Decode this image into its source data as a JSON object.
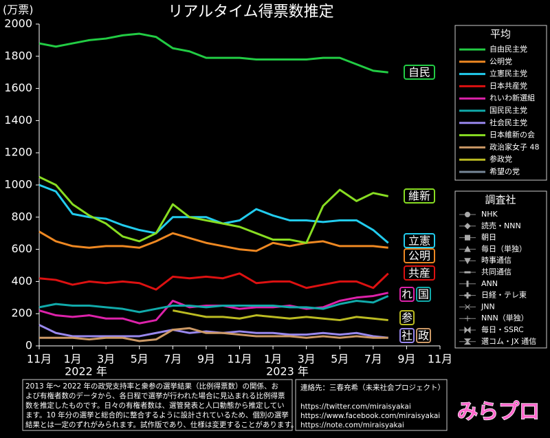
{
  "chart_data": {
    "type": "line",
    "title": "リアルタイム得票数推定",
    "y_unit_label": "(万票)",
    "x": [
      0,
      1,
      2,
      3,
      4,
      5,
      6,
      7,
      8,
      9,
      10,
      11,
      12,
      13,
      14,
      15,
      16,
      17,
      18,
      19,
      20,
      20.9
    ],
    "xlim": [
      0,
      24
    ],
    "xticks": [
      {
        "value": 0,
        "label": "11月"
      },
      {
        "value": 2,
        "label": "1月"
      },
      {
        "value": 4,
        "label": "3月"
      },
      {
        "value": 6,
        "label": "5月"
      },
      {
        "value": 8,
        "label": "7月"
      },
      {
        "value": 10,
        "label": "9月"
      },
      {
        "value": 12,
        "label": "11月"
      },
      {
        "value": 14,
        "label": "1月"
      },
      {
        "value": 16,
        "label": "3月"
      },
      {
        "value": 18,
        "label": "5月"
      },
      {
        "value": 20,
        "label": "7月"
      },
      {
        "value": 22,
        "label": "9月"
      },
      {
        "value": 24,
        "label": "11月"
      }
    ],
    "year_labels": [
      "2022 年",
      "2023 年"
    ],
    "ylim": [
      0,
      2000
    ],
    "yticks": [
      0,
      200,
      400,
      600,
      800,
      1000,
      1200,
      1400,
      1600,
      1800,
      2000
    ],
    "legend_title": "平均",
    "series": [
      {
        "name": "自由民主党",
        "color": "#22cc44",
        "values": [
          1880,
          1860,
          1880,
          1900,
          1910,
          1930,
          1940,
          1920,
          1850,
          1830,
          1790,
          1790,
          1790,
          1780,
          1780,
          1780,
          1780,
          1790,
          1790,
          1750,
          1710,
          1700
        ]
      },
      {
        "name": "公明党",
        "color": "#ee8822",
        "values": [
          710,
          650,
          620,
          610,
          620,
          620,
          610,
          650,
          700,
          670,
          640,
          620,
          600,
          590,
          640,
          620,
          640,
          650,
          620,
          620,
          620,
          610
        ]
      },
      {
        "name": "立憲民主党",
        "color": "#22ccee",
        "values": [
          1000,
          960,
          820,
          800,
          790,
          750,
          720,
          700,
          800,
          800,
          800,
          760,
          780,
          850,
          810,
          780,
          780,
          770,
          780,
          780,
          720,
          640
        ]
      },
      {
        "name": "日本共産党",
        "color": "#dd1111",
        "values": [
          420,
          410,
          380,
          400,
          390,
          400,
          390,
          350,
          430,
          420,
          430,
          420,
          450,
          390,
          400,
          400,
          360,
          380,
          400,
          400,
          360,
          450
        ]
      },
      {
        "name": "れいわ新選組",
        "color": "#dd22aa",
        "values": [
          220,
          190,
          180,
          190,
          170,
          170,
          140,
          160,
          280,
          240,
          250,
          250,
          230,
          240,
          240,
          250,
          230,
          240,
          280,
          300,
          310,
          330
        ]
      },
      {
        "name": "国民民主党",
        "color": "#11aaaa",
        "values": [
          240,
          260,
          250,
          250,
          240,
          230,
          210,
          230,
          250,
          250,
          240,
          250,
          250,
          250,
          250,
          240,
          240,
          230,
          260,
          280,
          270,
          310
        ]
      },
      {
        "name": "社会民主党",
        "color": "#9988ee",
        "values": [
          130,
          80,
          60,
          60,
          60,
          60,
          60,
          80,
          100,
          80,
          90,
          80,
          90,
          80,
          80,
          70,
          70,
          80,
          70,
          80,
          60,
          50
        ]
      },
      {
        "name": "日本維新の会",
        "color": "#88dd22",
        "values": [
          1050,
          1000,
          880,
          810,
          760,
          680,
          650,
          700,
          880,
          800,
          780,
          760,
          740,
          700,
          660,
          660,
          640,
          870,
          970,
          900,
          950,
          930
        ]
      },
      {
        "name": "政治家女子 48",
        "color": "#cc9966",
        "values": [
          50,
          50,
          50,
          40,
          50,
          50,
          30,
          40,
          100,
          110,
          80,
          80,
          70,
          60,
          60,
          60,
          50,
          60,
          50,
          60,
          50,
          50
        ]
      },
      {
        "name": "参政党",
        "color": "#bbbb22",
        "values": [
          null,
          null,
          null,
          null,
          null,
          null,
          null,
          null,
          220,
          200,
          180,
          180,
          170,
          190,
          180,
          170,
          180,
          170,
          160,
          180,
          170,
          160
        ]
      },
      {
        "name": "希望の党",
        "color": "#778899",
        "values": [
          null,
          null,
          null,
          null,
          null,
          null,
          null,
          null,
          null,
          null,
          null,
          null,
          null,
          null,
          null,
          null,
          null,
          null,
          null,
          null,
          null,
          null
        ]
      }
    ],
    "end_labels": [
      "自民",
      "維新",
      "立憲",
      "公明",
      "共産",
      "れ",
      "国",
      "参",
      "社",
      "政"
    ],
    "survey_legend": {
      "title": "調査社",
      "items": [
        "NHK",
        "読売・NNN",
        "朝日",
        "毎日（単独）",
        "時事通信",
        "共同通信",
        "ANN",
        "日経・テレ東",
        "JNN",
        "NNN（単独）",
        "毎日・SSRC",
        "選コム・JX 通信"
      ]
    }
  },
  "note": [
    "2013 年～ 2022 年の政党支持率と衆参の選挙結果（比例得票数）の関係、お",
    "よび有権者数のデータから、各日程で選挙が行われた場合に見込まれる比例得票",
    "数を推定したものです。日々の有権者数は、選管発表と人口動態から推定してい",
    "ます。10 年分の選挙と総合的に整合するように設計されているため、個別の選挙",
    "結果とは一定のずれがみられます。試作版であり、仕様は変更することがあります。"
  ],
  "contact": [
    "連絡先：三春充希（未来社会プロジェクト）",
    "https://twitter.com/miraisyakai",
    "https://www.facebook.com/miraisyakai",
    "https://note.com/miraisyakai"
  ],
  "logo": "みらプロ"
}
